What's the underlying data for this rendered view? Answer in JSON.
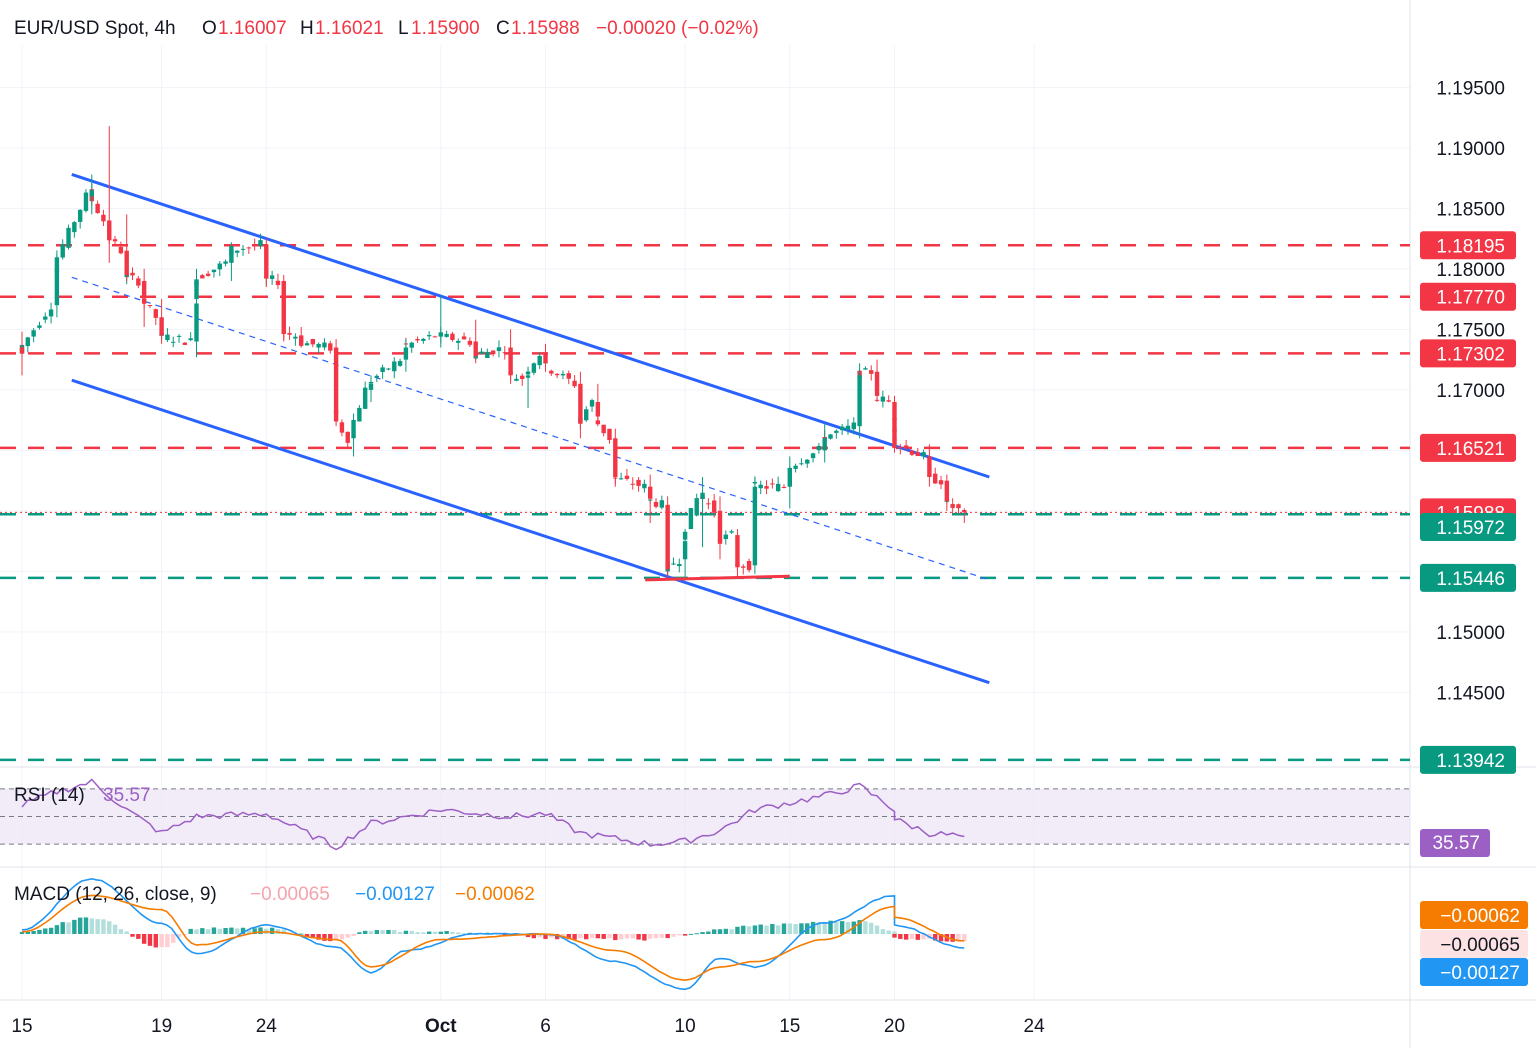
{
  "header": {
    "symbol": "EUR/USD Spot, 4h",
    "o_label": "O",
    "o_value": "1.16007",
    "h_label": "H",
    "h_value": "1.16021",
    "l_label": "L",
    "l_value": "1.15900",
    "c_label": "C",
    "c_value": "1.15988",
    "change": "−0.00020 (−0.02%)"
  },
  "colors": {
    "up": "#089981",
    "down": "#f23645",
    "channel": "#2962ff",
    "rsi": "#9c5fc4",
    "macd_line": "#2196f3",
    "signal_line": "#f57c00",
    "hist_up_strong": "#26a69a",
    "hist_up_weak": "#b2dfdb",
    "hist_down_strong": "#f23645",
    "hist_down_weak": "#ffcdd2",
    "resistance": "#f23645",
    "support": "#089981"
  },
  "chart_data": [
    {
      "type": "candlestick",
      "title": "EUR/USD Spot, 4h",
      "ylim": [
        1.139,
        1.1985
      ],
      "x_ticks": [
        "15",
        "19",
        "24",
        "Oct",
        "6",
        "10",
        "15",
        "20",
        "24"
      ],
      "y_ticks": [
        "1.19500",
        "1.19000",
        "1.18500",
        "1.18000",
        "1.17500",
        "1.17000",
        "1.16500",
        "1.16000",
        "1.15500",
        "1.15000",
        "1.14500"
      ],
      "series": [
        {
          "name": "EUR/USD",
          "ohlc_anchors": [
            [
              "Sep 15",
              1.1735,
              1.1748,
              1.1712,
              1.173
            ],
            [
              "Sep 16",
              1.177,
              1.1812,
              1.176,
              1.18
            ],
            [
              "Sep 17",
              1.186,
              1.1878,
              1.1845,
              1.1865
            ],
            [
              "Sep 17 late",
              1.184,
              1.1918,
              1.1805,
              1.183
            ],
            [
              "Sep 18",
              1.1815,
              1.1845,
              1.179,
              1.1795
            ],
            [
              "Sep 18 late",
              1.179,
              1.18,
              1.1752,
              1.1778
            ],
            [
              "Sep 19",
              1.176,
              1.1775,
              1.1738,
              1.1745
            ],
            [
              "Sep 21",
              1.174,
              1.176,
              1.1727,
              1.1752
            ],
            [
              "Sep 22",
              1.1775,
              1.18,
              1.177,
              1.179
            ],
            [
              "Sep 23",
              1.1805,
              1.1822,
              1.179,
              1.1815
            ],
            [
              "Sep 24",
              1.182,
              1.1825,
              1.1785,
              1.1792
            ],
            [
              "Sep 24 late",
              1.179,
              1.1795,
              1.174,
              1.1748
            ],
            [
              "Sep 25",
              1.1745,
              1.1752,
              1.1735,
              1.174
            ],
            [
              "Sep 26",
              1.1735,
              1.1742,
              1.167,
              1.168
            ],
            [
              "Sep 26 late",
              1.166,
              1.1672,
              1.1645,
              1.1662
            ],
            [
              "Sep 29",
              1.17,
              1.1712,
              1.169,
              1.1705
            ],
            [
              "Sep 30",
              1.1725,
              1.1742,
              1.1715,
              1.1735
            ],
            [
              "Oct 1",
              1.1745,
              1.1778,
              1.1735,
              1.1745
            ],
            [
              "Oct 2",
              1.174,
              1.1758,
              1.1722,
              1.1728
            ],
            [
              "Oct 3",
              1.1735,
              1.175,
              1.1705,
              1.1712
            ],
            [
              "Oct 3 late",
              1.171,
              1.1718,
              1.1685,
              1.1712
            ],
            [
              "Oct 6",
              1.173,
              1.1738,
              1.1715,
              1.1722
            ],
            [
              "Oct 7",
              1.1705,
              1.1715,
              1.166,
              1.1672
            ],
            [
              "Oct 7 late",
              1.169,
              1.1705,
              1.167,
              1.1678
            ],
            [
              "Oct 8",
              1.166,
              1.1668,
              1.162,
              1.1628
            ],
            [
              "Oct 9",
              1.162,
              1.163,
              1.159,
              1.161
            ],
            [
              "Oct 9 late",
              1.1605,
              1.1612,
              1.1545,
              1.1552
            ],
            [
              "Oct 10",
              1.156,
              1.1585,
              1.1545,
              1.1575
            ],
            [
              "Oct 10 late",
              1.161,
              1.1628,
              1.157,
              1.1615
            ],
            [
              "Oct 13",
              1.16,
              1.1612,
              1.156,
              1.1575
            ],
            [
              "Oct 13 late",
              1.158,
              1.1585,
              1.1545,
              1.1555
            ],
            [
              "Oct 14",
              1.1555,
              1.1628,
              1.1548,
              1.162
            ],
            [
              "Oct 15",
              1.162,
              1.1645,
              1.1602,
              1.1635
            ],
            [
              "Oct 16",
              1.165,
              1.1672,
              1.164,
              1.166
            ],
            [
              "Oct 17",
              1.167,
              1.1722,
              1.166,
              1.1712
            ],
            [
              "Oct 17 late",
              1.1715,
              1.1725,
              1.169,
              1.1695
            ],
            [
              "Oct 18",
              1.169,
              1.1695,
              1.167,
              1.1675
            ],
            [
              "Oct 20",
              1.1668,
              1.1672,
              1.165,
              1.1658
            ],
            [
              "Oct 21",
              1.1645,
              1.1655,
              1.162,
              1.1628
            ],
            [
              "Oct 21 late",
              1.1625,
              1.163,
              1.16,
              1.1608
            ],
            [
              "Oct 22",
              1.16007,
              1.16021,
              1.159,
              1.15988
            ]
          ]
        }
      ]
    },
    {
      "type": "line",
      "title": "RSI (14)",
      "value_label": "35.57",
      "ylim": [
        20,
        80
      ],
      "y_ticks": [
        "80.00"
      ],
      "reference_lines": [
        70,
        50,
        30
      ],
      "series": [
        {
          "name": "RSI (14)",
          "anchors": [
            [
              "Sep 15",
              58
            ],
            [
              "Sep 16",
              68
            ],
            [
              "Sep 17",
              75
            ],
            [
              "Sep 18",
              55
            ],
            [
              "Sep 19",
              38
            ],
            [
              "Sep 22",
              50
            ],
            [
              "Sep 24",
              52
            ],
            [
              "Sep 25",
              40
            ],
            [
              "Sep 26",
              28
            ],
            [
              "Sep 29",
              45
            ],
            [
              "Oct 1",
              55
            ],
            [
              "Oct 3",
              50
            ],
            [
              "Oct 6",
              52
            ],
            [
              "Oct 7",
              38
            ],
            [
              "Oct 9",
              30
            ],
            [
              "Oct 10",
              32
            ],
            [
              "Oct 13",
              40
            ],
            [
              "Oct 14",
              55
            ],
            [
              "Oct 16",
              65
            ],
            [
              "Oct 17",
              72
            ],
            [
              "Oct 18",
              55
            ],
            [
              "Oct 20",
              48
            ],
            [
              "Oct 21",
              38
            ],
            [
              "Oct 22",
              35.57
            ]
          ]
        }
      ]
    },
    {
      "type": "bar",
      "title": "MACD (12, 26, close, 9)",
      "series": [
        {
          "name": "Histogram",
          "last": "−0.00065",
          "anchors": [
            [
              "Sep 15",
              0.0001
            ],
            [
              "Sep 17",
              0.0015
            ],
            [
              "Sep 19",
              -0.0012
            ],
            [
              "Sep 22",
              0.0005
            ],
            [
              "Sep 24",
              0.0005
            ],
            [
              "Sep 26",
              -0.0006
            ],
            [
              "Sep 29",
              0.0003
            ],
            [
              "Oct 1",
              0.0002
            ],
            [
              "Oct 3",
              0.0
            ],
            [
              "Oct 6",
              -0.0004
            ],
            [
              "Oct 9",
              -0.0005
            ],
            [
              "Oct 10",
              -0.0001
            ],
            [
              "Oct 13",
              0.0004
            ],
            [
              "Oct 14",
              0.0008
            ],
            [
              "Oct 17",
              0.0012
            ],
            [
              "Oct 18",
              0.0003
            ],
            [
              "Oct 20",
              -0.0004
            ],
            [
              "Oct 22",
              -0.00065
            ]
          ]
        },
        {
          "name": "MACD",
          "last": "−0.00127",
          "anchors": [
            [
              "Sep 15",
              0.0004
            ],
            [
              "Sep 17",
              0.005
            ],
            [
              "Sep 19",
              0.001
            ],
            [
              "Sep 21",
              -0.0018
            ],
            [
              "Sep 24",
              0.0008
            ],
            [
              "Sep 26",
              -0.0012
            ],
            [
              "Sep 28",
              -0.0035
            ],
            [
              "Sep 30",
              -0.0015
            ],
            [
              "Oct 2",
              0.0
            ],
            [
              "Oct 6",
              0.0
            ],
            [
              "Oct 8",
              -0.0025
            ],
            [
              "Oct 10",
              -0.005
            ],
            [
              "Oct 12",
              -0.0022
            ],
            [
              "Oct 14",
              -0.003
            ],
            [
              "Oct 16",
              0.001
            ],
            [
              "Oct 18",
              0.0035
            ],
            [
              "Oct 20",
              0.0008
            ],
            [
              "Oct 22",
              -0.00127
            ]
          ]
        },
        {
          "name": "Signal",
          "last": "−0.00062",
          "anchors": [
            [
              "Sep 15",
              0.0002
            ],
            [
              "Sep 17",
              0.0035
            ],
            [
              "Sep 19",
              0.0022
            ],
            [
              "Sep 22",
              -0.001
            ],
            [
              "Sep 24",
              0.0002
            ],
            [
              "Sep 26",
              -0.0005
            ],
            [
              "Sep 28",
              -0.003
            ],
            [
              "Oct 1",
              -0.0005
            ],
            [
              "Oct 6",
              0.0
            ],
            [
              "Oct 8",
              -0.0015
            ],
            [
              "Oct 10",
              -0.0042
            ],
            [
              "Oct 12",
              -0.003
            ],
            [
              "Oct 14",
              -0.0025
            ],
            [
              "Oct 16",
              -0.0005
            ],
            [
              "Oct 18",
              0.0025
            ],
            [
              "Oct 20",
              0.0015
            ],
            [
              "Oct 22",
              -0.00062
            ]
          ]
        }
      ]
    }
  ],
  "levels": {
    "resistance": [
      {
        "value": 1.18195,
        "label": "1.18195"
      },
      {
        "value": 1.1777,
        "label": "1.17770"
      },
      {
        "value": 1.17302,
        "label": "1.17302"
      },
      {
        "value": 1.16521,
        "label": "1.16521"
      }
    ],
    "support": [
      {
        "value": 1.15972,
        "label": "1.15972"
      },
      {
        "value": 1.15446,
        "label": "1.15446"
      },
      {
        "value": 1.13942,
        "label": "1.13942"
      }
    ],
    "current": {
      "value": 1.15988,
      "label": "1.15988"
    }
  },
  "channel": {
    "upper": [
      [
        "Sep 17",
        1.1878
      ],
      [
        "Oct 22",
        1.1628
      ]
    ],
    "lower": [
      [
        "Sep 17",
        1.1708
      ],
      [
        "Oct 22",
        1.1458
      ]
    ],
    "mid": [
      [
        "Sep 17",
        1.1793
      ],
      [
        "Oct 22",
        1.1543
      ]
    ],
    "double_bottom": [
      [
        "Oct 9",
        1.1543
      ],
      [
        "Oct 15",
        1.1546
      ]
    ]
  },
  "macd_axis": {
    "signal_label": "−0.00062",
    "hist_label": "−0.00065",
    "macd_label": "−0.00127"
  }
}
